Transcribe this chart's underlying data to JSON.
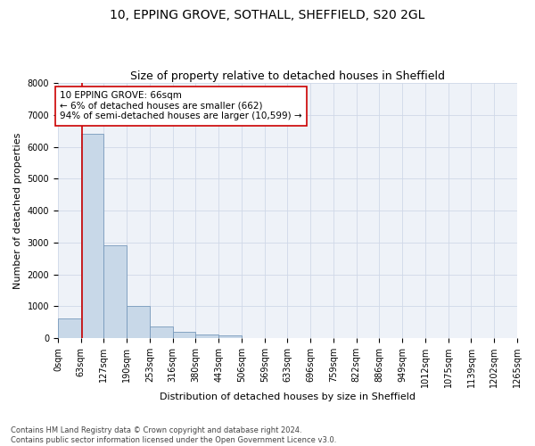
{
  "title1": "10, EPPING GROVE, SOTHALL, SHEFFIELD, S20 2GL",
  "title2": "Size of property relative to detached houses in Sheffield",
  "xlabel": "Distribution of detached houses by size in Sheffield",
  "ylabel": "Number of detached properties",
  "bin_labels": [
    "0sqm",
    "63sqm",
    "127sqm",
    "190sqm",
    "253sqm",
    "316sqm",
    "380sqm",
    "443sqm",
    "506sqm",
    "569sqm",
    "633sqm",
    "696sqm",
    "759sqm",
    "822sqm",
    "886sqm",
    "949sqm",
    "1012sqm",
    "1075sqm",
    "1139sqm",
    "1202sqm",
    "1265sqm"
  ],
  "bar_values": [
    620,
    6420,
    2920,
    1010,
    380,
    190,
    120,
    90,
    0,
    0,
    0,
    0,
    0,
    0,
    0,
    0,
    0,
    0,
    0,
    0
  ],
  "property_sqm": 66,
  "bar_color": "#c8d8e8",
  "bar_edge_color": "#7799bb",
  "vline_color": "#cc0000",
  "annotation_text": "10 EPPING GROVE: 66sqm\n← 6% of detached houses are smaller (662)\n94% of semi-detached houses are larger (10,599) →",
  "annotation_box_color": "#ffffff",
  "annotation_box_edge": "#cc0000",
  "ylim": [
    0,
    8000
  ],
  "yticks": [
    0,
    1000,
    2000,
    3000,
    4000,
    5000,
    6000,
    7000,
    8000
  ],
  "grid_color": "#d0d8e8",
  "background_color": "#eef2f8",
  "footer_text": "Contains HM Land Registry data © Crown copyright and database right 2024.\nContains public sector information licensed under the Open Government Licence v3.0.",
  "title1_fontsize": 10,
  "title2_fontsize": 9,
  "xlabel_fontsize": 8,
  "ylabel_fontsize": 8,
  "annotation_fontsize": 7.5,
  "tick_fontsize": 7
}
